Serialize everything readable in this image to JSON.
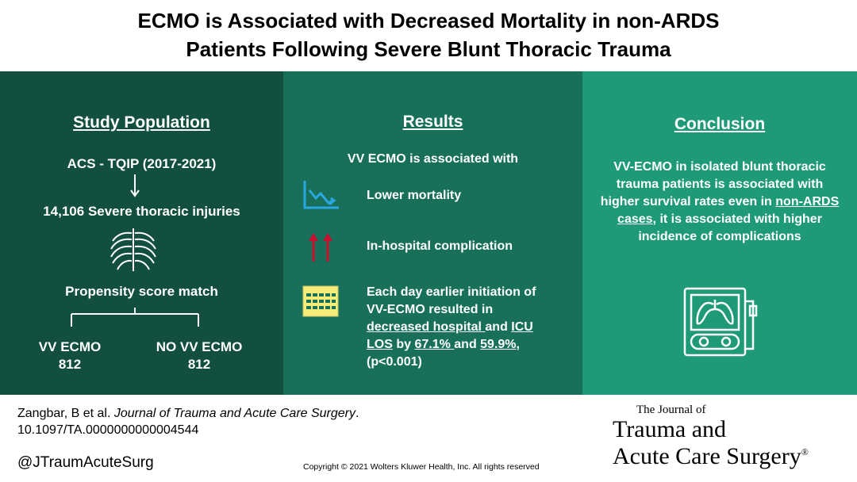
{
  "title": {
    "line1": "ECMO is Associated with Decreased Mortality in non-ARDS",
    "line2": "Patients Following Severe Blunt Thoracic Trauma"
  },
  "population": {
    "heading": "Study Population",
    "source": "ACS - TQIP (2017-2021)",
    "injuries": "14,106 Severe thoracic injuries",
    "match": "Propensity score match",
    "group1_label": "VV ECMO",
    "group1_n": "812",
    "group2_label": "NO VV ECMO",
    "group2_n": "812",
    "icons": [
      "arrow-down-icon",
      "ribcage-icon"
    ]
  },
  "results": {
    "heading": "Results",
    "intro": "VV ECMO is associated with",
    "item1": "Lower mortality",
    "item2": "In-hospital complication",
    "item3": {
      "p1": "Each day earlier initiation of",
      "p2": "VV-ECMO resulted in",
      "p3": "decreased hospital ",
      "p4": "and ",
      "p5": "ICU",
      "p6": "LOS",
      "p7": " by ",
      "p8": "67.1% ",
      "p9": "and ",
      "p10": "59.9%",
      "p11": ",",
      "p12": "(p<0.001)"
    },
    "icons": [
      "declining-chart-icon",
      "double-up-arrow-icon",
      "calendar-icon"
    ]
  },
  "conclusion": {
    "heading": "Conclusion",
    "l1": "VV-ECMO in isolated blunt thoracic",
    "l2": "trauma patients is associated with",
    "l3a": "higher survival rates even in ",
    "l3b": "non-ARDS",
    "l4a": "cases",
    "l4b": ", it is associated with higher",
    "l5": "incidence of complications",
    "icon": "ecmo-machine-icon"
  },
  "footer": {
    "citation_author": "Zangbar, B et al. ",
    "citation_journal": "Journal of Trauma and Acute Care Surgery",
    "citation_end": ".",
    "doi": "10.1097/TA.0000000000004544",
    "handle": "@JTraumAcuteSurg",
    "copyright": "Copyright © 2021  Wolters Kluwer Health, Inc. All rights reserved",
    "logo_line1": "The Journal of",
    "logo_line2": "Trauma and",
    "logo_line3": "Acute Care Surgery",
    "logo_reg": "®"
  },
  "colors": {
    "panel1": "#134f3e",
    "panel2": "#19705a",
    "panel3": "#1f9a78",
    "chart_icon": "#2aa7df",
    "arrow_icon": "#c8102e",
    "calendar_icon": "#f5ec7a"
  }
}
